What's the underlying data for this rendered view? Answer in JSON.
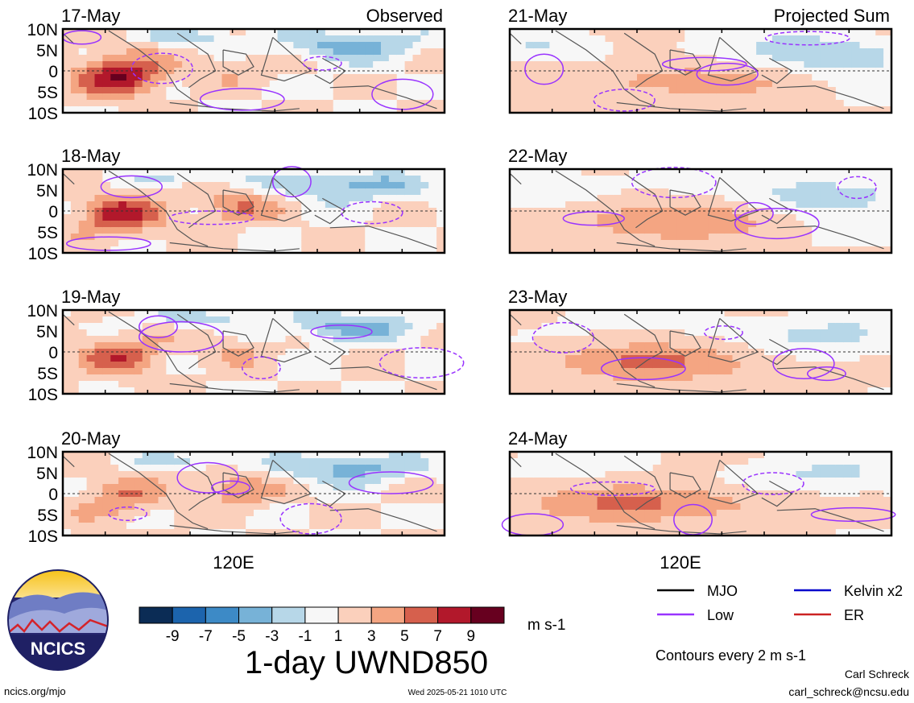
{
  "chart_data": {
    "type": "heatmap",
    "title": "1-day UWND850",
    "units": "m s-1",
    "contour_note": "Contours every 2 m s-1",
    "y_ticks": [
      "10N",
      "5N",
      "0",
      "5S",
      "10S"
    ],
    "x_tick": "120E",
    "colorbar": {
      "ticks": [
        "-9",
        "-7",
        "-5",
        "-3",
        "-1",
        "1",
        "3",
        "5",
        "7",
        "9"
      ],
      "colors": [
        "#0b2c55",
        "#1c64ad",
        "#3d8ac6",
        "#77b2d7",
        "#b7d7e8",
        "#f7f7f7",
        "#fbd0bc",
        "#f4a582",
        "#d6604d",
        "#b2182b",
        "#67001f"
      ]
    },
    "legend": [
      {
        "name": "MJO",
        "color": "#000000"
      },
      {
        "name": "Kelvin x2",
        "color": "#0000cc"
      },
      {
        "name": "Low",
        "color": "#9933ff"
      },
      {
        "name": "ER",
        "color": "#cc2222"
      }
    ],
    "panels": [
      {
        "date": "17-May",
        "heading": "Observed",
        "column": "left"
      },
      {
        "date": "18-May",
        "heading": "",
        "column": "left"
      },
      {
        "date": "19-May",
        "heading": "",
        "column": "left"
      },
      {
        "date": "20-May",
        "heading": "",
        "column": "left"
      },
      {
        "date": "21-May",
        "heading": "Projected Sum",
        "column": "right"
      },
      {
        "date": "22-May",
        "heading": "",
        "column": "right"
      },
      {
        "date": "23-May",
        "heading": "",
        "column": "right"
      },
      {
        "date": "24-May",
        "heading": "",
        "column": "right"
      }
    ]
  },
  "footer": {
    "logo_text": "NCICS",
    "site": "ncics.org/mjo",
    "timestamp": "Wed 2025-05-21 1010 UTC",
    "author": "Carl Schreck",
    "email": "carl_schreck@ncsu.edu"
  }
}
